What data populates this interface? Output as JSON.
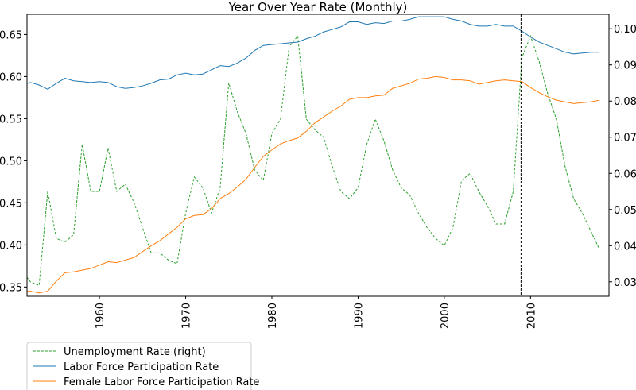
{
  "chart_data": {
    "type": "line",
    "title": "Year Over Year Rate (Monthly)",
    "x": [
      1951,
      1952,
      1953,
      1954,
      1955,
      1956,
      1957,
      1958,
      1959,
      1960,
      1961,
      1962,
      1963,
      1964,
      1965,
      1966,
      1967,
      1968,
      1969,
      1970,
      1971,
      1972,
      1973,
      1974,
      1975,
      1976,
      1977,
      1978,
      1979,
      1980,
      1981,
      1982,
      1983,
      1984,
      1985,
      1986,
      1987,
      1988,
      1989,
      1990,
      1991,
      1992,
      1993,
      1994,
      1995,
      1996,
      1997,
      1998,
      1999,
      2000,
      2001,
      2002,
      2003,
      2004,
      2005,
      2006,
      2007,
      2008,
      2009,
      2010,
      2011,
      2012,
      2013,
      2014,
      2015,
      2016,
      2017,
      2018
    ],
    "xlim": [
      1951.6,
      2019.1
    ],
    "xticks": [
      1960,
      1970,
      1980,
      1990,
      2000,
      2010
    ],
    "ylim": [
      0.339,
      0.674
    ],
    "yticks": [
      0.35,
      {
        "value": 0.4,
        "label": "0.40"
      },
      0.45,
      {
        "value": 0.5,
        "label": "0.50"
      },
      0.55,
      {
        "value": 0.6,
        "label": "0.60"
      },
      0.65
    ],
    "y2lim": [
      0.026,
      0.104
    ],
    "y2ticks": [
      {
        "value": 0.03,
        "label": "0.030"
      },
      {
        "value": 0.04,
        "label": "0.040"
      },
      {
        "value": 0.05,
        "label": "0.050"
      },
      {
        "value": 0.06,
        "label": "0.060"
      },
      {
        "value": 0.07,
        "label": "0.070"
      },
      {
        "value": 0.08,
        "label": "0.080"
      },
      {
        "value": 0.09,
        "label": "0.090"
      },
      {
        "value": 0.1,
        "label": "0.100"
      }
    ],
    "vline_x": 2008.9,
    "legend": "lower left",
    "series": [
      {
        "name": "Unemployment Rate (right)",
        "color": "#2ca02c",
        "axis": "y2",
        "dashed": true,
        "values": [
          0.033,
          0.03,
          0.029,
          0.055,
          0.042,
          0.041,
          0.043,
          0.068,
          0.055,
          0.055,
          0.067,
          0.055,
          0.057,
          0.052,
          0.045,
          0.038,
          0.038,
          0.036,
          0.035,
          0.049,
          0.059,
          0.056,
          0.049,
          0.056,
          0.085,
          0.077,
          0.071,
          0.061,
          0.058,
          0.071,
          0.075,
          0.095,
          0.098,
          0.075,
          0.072,
          0.07,
          0.062,
          0.055,
          0.053,
          0.056,
          0.068,
          0.075,
          0.069,
          0.061,
          0.056,
          0.054,
          0.049,
          0.045,
          0.042,
          0.04,
          0.045,
          0.058,
          0.06,
          0.055,
          0.051,
          0.046,
          0.046,
          0.055,
          0.092,
          0.098,
          0.091,
          0.082,
          0.075,
          0.062,
          0.053,
          0.049,
          0.044,
          0.039
        ]
      },
      {
        "name": "Labor Force Participation Rate",
        "color": "#1f77b4",
        "values": [
          0.59,
          0.593,
          0.59,
          0.585,
          0.592,
          0.598,
          0.595,
          0.594,
          0.593,
          0.594,
          0.593,
          0.588,
          0.586,
          0.587,
          0.589,
          0.592,
          0.596,
          0.597,
          0.602,
          0.604,
          0.602,
          0.603,
          0.608,
          0.613,
          0.612,
          0.616,
          0.622,
          0.631,
          0.637,
          0.638,
          0.639,
          0.64,
          0.641,
          0.645,
          0.648,
          0.653,
          0.656,
          0.659,
          0.665,
          0.665,
          0.662,
          0.664,
          0.663,
          0.666,
          0.666,
          0.668,
          0.671,
          0.671,
          0.671,
          0.671,
          0.668,
          0.666,
          0.662,
          0.66,
          0.66,
          0.662,
          0.66,
          0.66,
          0.654,
          0.647,
          0.641,
          0.637,
          0.633,
          0.629,
          0.627,
          0.628,
          0.629,
          0.629
        ]
      },
      {
        "name": "Female Labor Force Participation Rate",
        "color": "#ff7f0e",
        "values": [
          0.345,
          0.345,
          0.343,
          0.345,
          0.357,
          0.367,
          0.368,
          0.37,
          0.372,
          0.376,
          0.38,
          0.379,
          0.382,
          0.385,
          0.392,
          0.399,
          0.405,
          0.413,
          0.421,
          0.431,
          0.435,
          0.436,
          0.443,
          0.455,
          0.461,
          0.469,
          0.478,
          0.492,
          0.505,
          0.513,
          0.52,
          0.524,
          0.527,
          0.535,
          0.545,
          0.552,
          0.559,
          0.565,
          0.573,
          0.575,
          0.575,
          0.577,
          0.578,
          0.586,
          0.589,
          0.592,
          0.597,
          0.598,
          0.6,
          0.599,
          0.596,
          0.596,
          0.595,
          0.591,
          0.593,
          0.595,
          0.596,
          0.595,
          0.594,
          0.587,
          0.581,
          0.576,
          0.572,
          0.57,
          0.568,
          0.569,
          0.57,
          0.572
        ]
      }
    ]
  }
}
